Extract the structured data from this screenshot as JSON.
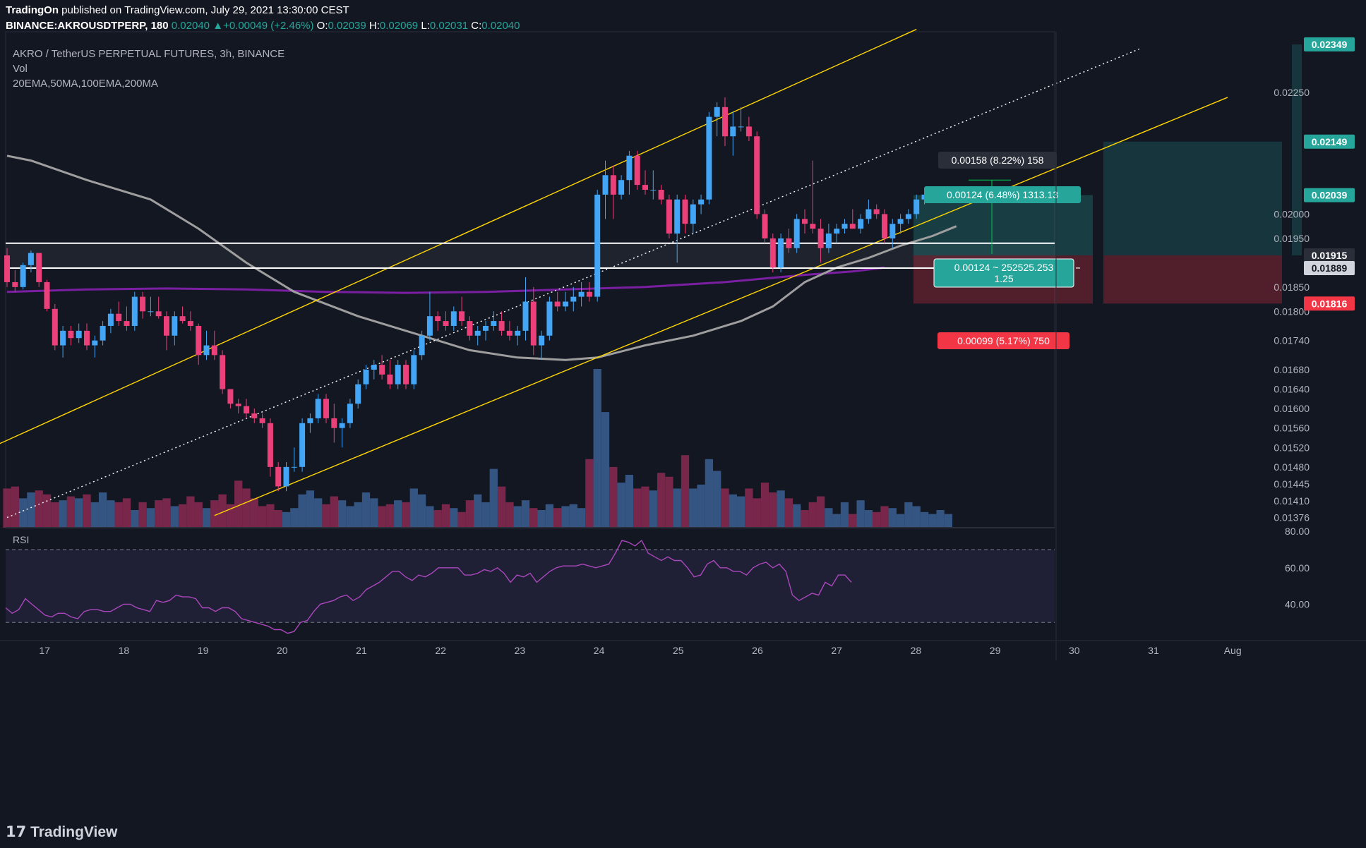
{
  "header": {
    "author": "TradingOn",
    "published_text": "published on TradingView.com, July 29, 2021 13:30:00 CEST",
    "symbol": "BINANCE:AKROUSDTPERP",
    "interval": "180",
    "last": "0.02040",
    "change": "+0.00049 (+2.46%)",
    "o_label": "O:",
    "o_value": "0.02039",
    "h_label": "H:",
    "h_value": "0.02069",
    "l_label": "L:",
    "l_value": "0.02031",
    "c_label": "C:",
    "c_value": "0.02040"
  },
  "legend": {
    "title": "AKRO / TetherUS PERPETUAL FUTURES, 3h, BINANCE",
    "vol": "Vol",
    "mas": "20EMA,50MA,100EMA,200MA"
  },
  "brand": "TradingView",
  "colors": {
    "background": "#131722",
    "up": "#42a5f5",
    "down": "#ec407a",
    "channel": "#ffd600",
    "ma_gray": "#9e9e9e",
    "ma_purple": "#7b1fa2",
    "rsi": "#ab47bc",
    "profit": "#26a69a",
    "loss": "#f23645"
  },
  "chart_data": {
    "type": "candlestick",
    "price_axis": {
      "range": [
        0.01355,
        0.02375
      ],
      "ticks": [
        "0.02250",
        "0.02000",
        "0.01950",
        "0.01850",
        "0.01800",
        "0.01740",
        "0.01680",
        "0.01640",
        "0.01600",
        "0.01560",
        "0.01520",
        "0.01480",
        "0.01445",
        "0.01410",
        "0.01376"
      ],
      "tags": [
        {
          "text": "0.02349",
          "value": 0.02349,
          "color": "#26a69a"
        },
        {
          "text": "0.02149",
          "value": 0.02149,
          "color": "#26a69a"
        },
        {
          "text": "0.02039",
          "value": 0.02039,
          "color": "#26a69a"
        },
        {
          "text": "0.01915",
          "value": 0.01915,
          "color": "#2a2e39"
        },
        {
          "text": "0.01889",
          "value": 0.01889,
          "color": "#d1d4dc"
        },
        {
          "text": "0.01816",
          "value": 0.01816,
          "color": "#f23645"
        }
      ]
    },
    "time_axis": [
      "17",
      "18",
      "19",
      "20",
      "21",
      "22",
      "23",
      "24",
      "25",
      "26",
      "27",
      "28",
      "29",
      "30",
      "31",
      "Aug"
    ],
    "time_axis_day_positions": [
      0.67,
      1.67,
      2.67,
      3.67,
      4.67,
      5.67,
      6.67,
      7.67,
      8.67,
      9.67,
      10.67,
      11.67,
      12.67,
      13.67,
      14.67,
      15.67
    ],
    "candles": [
      [
        0.01915,
        0.0193,
        0.0185,
        0.0186
      ],
      [
        0.0186,
        0.01885,
        0.0184,
        0.0185
      ],
      [
        0.0185,
        0.019,
        0.01845,
        0.01895
      ],
      [
        0.01895,
        0.01925,
        0.0188,
        0.0192
      ],
      [
        0.0192,
        0.0192,
        0.0185,
        0.0186
      ],
      [
        0.0186,
        0.01865,
        0.018,
        0.01805
      ],
      [
        0.01805,
        0.01815,
        0.0172,
        0.0173
      ],
      [
        0.0173,
        0.0177,
        0.01705,
        0.0176
      ],
      [
        0.0176,
        0.0177,
        0.0173,
        0.01745
      ],
      [
        0.01745,
        0.01775,
        0.01735,
        0.0176
      ],
      [
        0.0176,
        0.01775,
        0.0172,
        0.0173
      ],
      [
        0.0173,
        0.0175,
        0.01705,
        0.0174
      ],
      [
        0.0174,
        0.0178,
        0.0173,
        0.0177
      ],
      [
        0.0177,
        0.01805,
        0.01755,
        0.01795
      ],
      [
        0.01795,
        0.0182,
        0.0177,
        0.0178
      ],
      [
        0.0178,
        0.0181,
        0.0176,
        0.0177
      ],
      [
        0.0177,
        0.0184,
        0.0176,
        0.0183
      ],
      [
        0.0183,
        0.0184,
        0.01785,
        0.018
      ],
      [
        0.018,
        0.0183,
        0.0179,
        0.018
      ],
      [
        0.018,
        0.0183,
        0.01785,
        0.0179
      ],
      [
        0.0179,
        0.018,
        0.0172,
        0.0175
      ],
      [
        0.0175,
        0.018,
        0.0173,
        0.0179
      ],
      [
        0.0179,
        0.0181,
        0.01775,
        0.0178
      ],
      [
        0.0178,
        0.018,
        0.0176,
        0.0177
      ],
      [
        0.0177,
        0.01775,
        0.0169,
        0.0171
      ],
      [
        0.0171,
        0.0176,
        0.017,
        0.0173
      ],
      [
        0.0173,
        0.0176,
        0.017,
        0.0171
      ],
      [
        0.0171,
        0.0172,
        0.0163,
        0.0164
      ],
      [
        0.0164,
        0.0164,
        0.016,
        0.0161
      ],
      [
        0.0161,
        0.0162,
        0.0159,
        0.01605
      ],
      [
        0.01605,
        0.0162,
        0.0158,
        0.0159
      ],
      [
        0.0159,
        0.016,
        0.0157,
        0.0158
      ],
      [
        0.0158,
        0.0159,
        0.0156,
        0.0157
      ],
      [
        0.0157,
        0.0158,
        0.0146,
        0.0148
      ],
      [
        0.0148,
        0.0149,
        0.0143,
        0.0144
      ],
      [
        0.0144,
        0.0149,
        0.0143,
        0.0148
      ],
      [
        0.0148,
        0.0152,
        0.0147,
        0.0148
      ],
      [
        0.0148,
        0.0158,
        0.0147,
        0.0157
      ],
      [
        0.0157,
        0.0159,
        0.0155,
        0.0158
      ],
      [
        0.0158,
        0.0163,
        0.0157,
        0.0162
      ],
      [
        0.0162,
        0.0163,
        0.0157,
        0.0158
      ],
      [
        0.0158,
        0.0161,
        0.0153,
        0.0156
      ],
      [
        0.0156,
        0.0158,
        0.0152,
        0.0157
      ],
      [
        0.0157,
        0.0162,
        0.0156,
        0.0161
      ],
      [
        0.0161,
        0.0166,
        0.016,
        0.0165
      ],
      [
        0.0165,
        0.0169,
        0.0164,
        0.0168
      ],
      [
        0.0168,
        0.017,
        0.0166,
        0.0169
      ],
      [
        0.0169,
        0.0171,
        0.0166,
        0.0167
      ],
      [
        0.0167,
        0.017,
        0.0164,
        0.0165
      ],
      [
        0.0165,
        0.017,
        0.0164,
        0.0169
      ],
      [
        0.0169,
        0.017,
        0.0164,
        0.0165
      ],
      [
        0.0165,
        0.0172,
        0.0164,
        0.0171
      ],
      [
        0.0171,
        0.0176,
        0.017,
        0.0175
      ],
      [
        0.0175,
        0.0184,
        0.0174,
        0.0179
      ],
      [
        0.0179,
        0.018,
        0.0176,
        0.0178
      ],
      [
        0.0178,
        0.018,
        0.0176,
        0.0177
      ],
      [
        0.0177,
        0.0181,
        0.0176,
        0.018
      ],
      [
        0.018,
        0.0183,
        0.0177,
        0.0178
      ],
      [
        0.0178,
        0.0179,
        0.0174,
        0.0175
      ],
      [
        0.0175,
        0.0177,
        0.0173,
        0.0176
      ],
      [
        0.0176,
        0.0178,
        0.0174,
        0.0177
      ],
      [
        0.0177,
        0.018,
        0.0176,
        0.0178
      ],
      [
        0.0178,
        0.018,
        0.0175,
        0.0176
      ],
      [
        0.0176,
        0.0178,
        0.0174,
        0.0175
      ],
      [
        0.0175,
        0.0177,
        0.0173,
        0.0176
      ],
      [
        0.0176,
        0.0187,
        0.0174,
        0.0182
      ],
      [
        0.0182,
        0.0185,
        0.0171,
        0.0173
      ],
      [
        0.0173,
        0.0176,
        0.017,
        0.0175
      ],
      [
        0.0175,
        0.0183,
        0.0174,
        0.0182
      ],
      [
        0.0182,
        0.0184,
        0.018,
        0.0181
      ],
      [
        0.0181,
        0.0184,
        0.018,
        0.0182
      ],
      [
        0.0182,
        0.0185,
        0.018,
        0.0183
      ],
      [
        0.0183,
        0.0186,
        0.0181,
        0.0184
      ],
      [
        0.0184,
        0.0186,
        0.0182,
        0.0183
      ],
      [
        0.0183,
        0.0205,
        0.0182,
        0.0204
      ],
      [
        0.0204,
        0.0211,
        0.0199,
        0.0208
      ],
      [
        0.0208,
        0.021,
        0.0199,
        0.0204
      ],
      [
        0.0204,
        0.0208,
        0.0203,
        0.0207
      ],
      [
        0.0207,
        0.0213,
        0.0204,
        0.0212
      ],
      [
        0.0212,
        0.0213,
        0.0205,
        0.0206
      ],
      [
        0.0206,
        0.0209,
        0.0204,
        0.0205
      ],
      [
        0.0205,
        0.0209,
        0.0203,
        0.0205
      ],
      [
        0.0205,
        0.0206,
        0.0202,
        0.0203
      ],
      [
        0.0203,
        0.0204,
        0.0195,
        0.0196
      ],
      [
        0.0196,
        0.0204,
        0.019,
        0.0203
      ],
      [
        0.0203,
        0.0204,
        0.0196,
        0.0198
      ],
      [
        0.0198,
        0.0203,
        0.0196,
        0.0202
      ],
      [
        0.0202,
        0.0204,
        0.02,
        0.0203
      ],
      [
        0.0203,
        0.0221,
        0.0202,
        0.022
      ],
      [
        0.022,
        0.0223,
        0.0216,
        0.0222
      ],
      [
        0.0222,
        0.0224,
        0.0214,
        0.0216
      ],
      [
        0.0216,
        0.0221,
        0.0212,
        0.0218
      ],
      [
        0.0218,
        0.0222,
        0.0217,
        0.0218
      ],
      [
        0.0218,
        0.022,
        0.0215,
        0.0216
      ],
      [
        0.0216,
        0.0217,
        0.0199,
        0.02
      ],
      [
        0.02,
        0.0201,
        0.0194,
        0.0195
      ],
      [
        0.0195,
        0.0196,
        0.0188,
        0.0189
      ],
      [
        0.0189,
        0.0196,
        0.0188,
        0.0195
      ],
      [
        0.0195,
        0.0197,
        0.0192,
        0.0193
      ],
      [
        0.0193,
        0.02,
        0.0192,
        0.0199
      ],
      [
        0.0199,
        0.0201,
        0.0196,
        0.0198
      ],
      [
        0.0198,
        0.0211,
        0.0196,
        0.0197
      ],
      [
        0.0197,
        0.0199,
        0.019,
        0.0193
      ],
      [
        0.0193,
        0.0198,
        0.0192,
        0.0196
      ],
      [
        0.0196,
        0.0198,
        0.0194,
        0.0197
      ],
      [
        0.0197,
        0.0199,
        0.0196,
        0.0198
      ],
      [
        0.0198,
        0.0201,
        0.0197,
        0.0197
      ],
      [
        0.0197,
        0.02,
        0.0196,
        0.0199
      ],
      [
        0.0199,
        0.0203,
        0.0198,
        0.0201
      ],
      [
        0.0201,
        0.0202,
        0.0199,
        0.02
      ],
      [
        0.02,
        0.0201,
        0.0194,
        0.0195
      ],
      [
        0.0195,
        0.0199,
        0.0193,
        0.0198
      ],
      [
        0.0198,
        0.02,
        0.0196,
        0.0199
      ],
      [
        0.0199,
        0.0201,
        0.0198,
        0.02
      ],
      [
        0.02,
        0.0204,
        0.0199,
        0.0203
      ],
      [
        0.0203,
        0.0205,
        0.0202,
        0.0204
      ]
    ],
    "volume": [
      40,
      42,
      30,
      36,
      38,
      34,
      26,
      28,
      32,
      30,
      34,
      26,
      36,
      28,
      26,
      30,
      18,
      26,
      20,
      28,
      30,
      22,
      24,
      32,
      26,
      20,
      28,
      34,
      24,
      48,
      40,
      30,
      22,
      24,
      18,
      16,
      20,
      34,
      38,
      30,
      24,
      32,
      28,
      22,
      26,
      36,
      30,
      22,
      24,
      28,
      26,
      40,
      34,
      22,
      18,
      24,
      20,
      16,
      28,
      34,
      26,
      60,
      42,
      26,
      22,
      28,
      20,
      18,
      24,
      20,
      22,
      24,
      20,
      70,
      162,
      118,
      62,
      46,
      54,
      40,
      42,
      38,
      56,
      52,
      40,
      74,
      40,
      44,
      70,
      58,
      40,
      34,
      32,
      40,
      30,
      46,
      36,
      38,
      30,
      24,
      18,
      26,
      32,
      20,
      14,
      26,
      14,
      28,
      18,
      16,
      22,
      20,
      14,
      26,
      22,
      16,
      14,
      18,
      14
    ],
    "volume_max_value": 162,
    "ma_gray": [
      [
        0,
        0.0212
      ],
      [
        3,
        0.0211
      ],
      [
        10,
        0.0207
      ],
      [
        18,
        0.0203
      ],
      [
        24,
        0.0197
      ],
      [
        30,
        0.019
      ],
      [
        36,
        0.0184
      ],
      [
        44,
        0.0179
      ],
      [
        50,
        0.0176
      ],
      [
        58,
        0.0172
      ],
      [
        64,
        0.01705
      ],
      [
        70,
        0.017
      ],
      [
        74,
        0.01705
      ],
      [
        80,
        0.0173
      ],
      [
        86,
        0.0175
      ],
      [
        92,
        0.0178
      ],
      [
        96,
        0.0181
      ],
      [
        100,
        0.0186
      ],
      [
        104,
        0.0189
      ],
      [
        108,
        0.0191
      ],
      [
        112,
        0.01935
      ],
      [
        116,
        0.01955
      ],
      [
        119,
        0.01975
      ]
    ],
    "ma_purple": [
      [
        0,
        0.0184
      ],
      [
        10,
        0.01845
      ],
      [
        20,
        0.01847
      ],
      [
        30,
        0.01845
      ],
      [
        40,
        0.0184
      ],
      [
        50,
        0.01838
      ],
      [
        60,
        0.0184
      ],
      [
        70,
        0.01845
      ],
      [
        80,
        0.0185
      ],
      [
        90,
        0.0186
      ],
      [
        100,
        0.01875
      ],
      [
        106,
        0.01882
      ],
      [
        110,
        0.0189
      ]
    ],
    "rsi_axis": [
      "80.00",
      "60.00",
      "40.00"
    ],
    "rsi_range": [
      20,
      82
    ],
    "rsi_bands": [
      70,
      30
    ],
    "rsi": [
      38,
      35,
      37,
      43,
      40,
      37,
      34,
      33,
      35,
      35,
      33,
      32,
      36,
      37,
      37,
      36,
      36,
      38,
      40,
      40,
      38,
      37,
      36,
      42,
      41,
      42,
      45,
      44,
      44,
      43,
      38,
      38,
      36,
      38,
      38,
      36,
      32,
      31,
      30,
      29,
      28,
      26,
      26,
      24,
      25,
      30,
      31,
      36,
      40,
      41,
      42,
      44,
      45,
      42,
      44,
      48,
      50,
      52,
      55,
      58,
      58,
      55,
      53,
      56,
      55,
      57,
      60,
      60,
      60,
      60,
      56,
      56,
      57,
      59,
      58,
      60,
      57,
      52,
      56,
      55,
      57,
      52,
      55,
      58,
      60,
      61,
      61,
      61,
      62,
      61,
      60,
      61,
      62,
      68,
      75,
      74,
      72,
      75,
      68,
      66,
      64,
      66,
      64,
      64,
      60,
      55,
      56,
      62,
      64,
      60,
      60,
      58,
      58,
      56,
      60,
      62,
      63,
      60,
      62,
      58,
      45,
      42,
      44,
      46,
      45,
      52,
      50,
      56,
      56,
      52
    ],
    "channel_upper": [
      [
        -2,
        0.0152
      ],
      [
        114,
        0.0238
      ]
    ],
    "channel_lower": [
      [
        26,
        0.0138
      ],
      [
        153,
        0.0224
      ]
    ],
    "channel_mid": [
      [
        0,
        0.01376
      ],
      [
        142,
        0.0234
      ]
    ],
    "sr_lines": [
      0.0194,
      0.01889
    ],
    "position_tool": {
      "entry": 0.01915,
      "stop": 0.01816,
      "target1": 0.02039,
      "target2": 0.02149,
      "reward_label": "0.00124 (6.48%) 1313.13",
      "risk_label": "0.00099 (5.17%) 750",
      "rr_label_line1": "0.00124 ~ 252525.253",
      "rr_label_line2": "1.25",
      "measure_label": "0.00158 (8.22%) 158"
    }
  }
}
